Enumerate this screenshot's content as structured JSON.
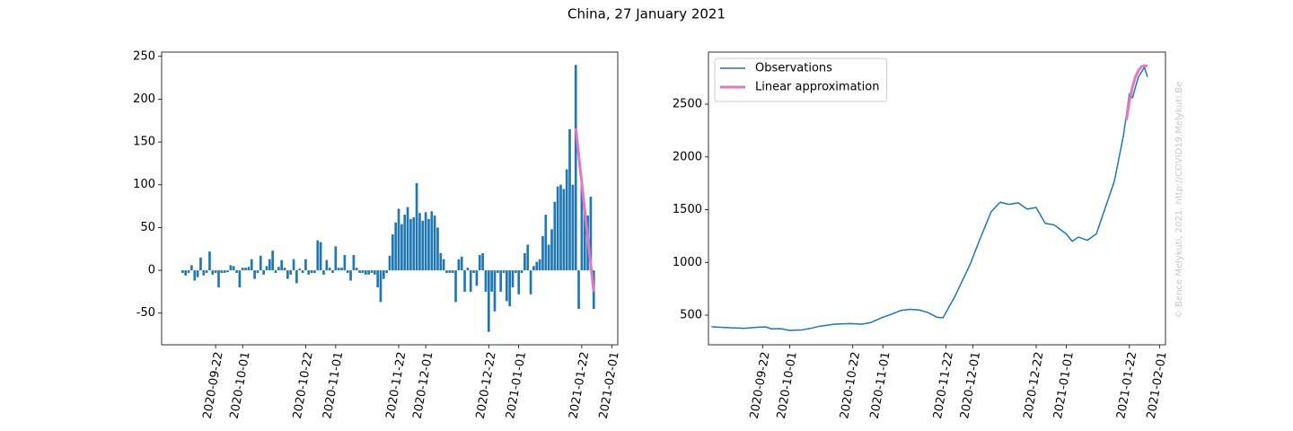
{
  "title": "China, 27 January 2021",
  "watermark": "© Bence Melykuti, 2021. http://COVID19.Melykuti.Be",
  "chart_data": [
    {
      "type": "bar",
      "xlim": [
        "2020-09-04",
        "2021-02-03"
      ],
      "xticks": [
        "2020-09-22",
        "2020-10-01",
        "2020-10-22",
        "2020-11-01",
        "2020-11-22",
        "2020-12-01",
        "2020-12-22",
        "2021-01-01",
        "2021-01-22",
        "2021-02-01"
      ],
      "ylim": [
        -87,
        255
      ],
      "yticks": [
        -50,
        0,
        50,
        100,
        150,
        200,
        250
      ],
      "series": [
        {
          "style": "bar",
          "color": "#1f77b4",
          "x": [
            "2020-09-11",
            "2020-09-12",
            "2020-09-13",
            "2020-09-14",
            "2020-09-15",
            "2020-09-16",
            "2020-09-17",
            "2020-09-18",
            "2020-09-19",
            "2020-09-20",
            "2020-09-21",
            "2020-09-22",
            "2020-09-23",
            "2020-09-24",
            "2020-09-25",
            "2020-09-26",
            "2020-09-27",
            "2020-09-28",
            "2020-09-29",
            "2020-09-30",
            "2020-10-01",
            "2020-10-02",
            "2020-10-03",
            "2020-10-04",
            "2020-10-05",
            "2020-10-06",
            "2020-10-07",
            "2020-10-08",
            "2020-10-09",
            "2020-10-10",
            "2020-10-11",
            "2020-10-12",
            "2020-10-13",
            "2020-10-14",
            "2020-10-15",
            "2020-10-16",
            "2020-10-17",
            "2020-10-18",
            "2020-10-19",
            "2020-10-20",
            "2020-10-21",
            "2020-10-22",
            "2020-10-23",
            "2020-10-24",
            "2020-10-25",
            "2020-10-26",
            "2020-10-27",
            "2020-10-28",
            "2020-10-29",
            "2020-10-30",
            "2020-10-31",
            "2020-11-01",
            "2020-11-02",
            "2020-11-03",
            "2020-11-04",
            "2020-11-05",
            "2020-11-06",
            "2020-11-07",
            "2020-11-08",
            "2020-11-09",
            "2020-11-10",
            "2020-11-11",
            "2020-11-12",
            "2020-11-13",
            "2020-11-14",
            "2020-11-15",
            "2020-11-16",
            "2020-11-17",
            "2020-11-18",
            "2020-11-19",
            "2020-11-20",
            "2020-11-21",
            "2020-11-22",
            "2020-11-23",
            "2020-11-24",
            "2020-11-25",
            "2020-11-26",
            "2020-11-27",
            "2020-11-28",
            "2020-11-29",
            "2020-11-30",
            "2020-12-01",
            "2020-12-02",
            "2020-12-03",
            "2020-12-04",
            "2020-12-05",
            "2020-12-06",
            "2020-12-07",
            "2020-12-08",
            "2020-12-09",
            "2020-12-10",
            "2020-12-11",
            "2020-12-12",
            "2020-12-13",
            "2020-12-14",
            "2020-12-15",
            "2020-12-16",
            "2020-12-17",
            "2020-12-18",
            "2020-12-19",
            "2020-12-20",
            "2020-12-21",
            "2020-12-22",
            "2020-12-23",
            "2020-12-24",
            "2020-12-25",
            "2020-12-26",
            "2020-12-27",
            "2020-12-28",
            "2020-12-29",
            "2020-12-30",
            "2020-12-31",
            "2021-01-01",
            "2021-01-02",
            "2021-01-03",
            "2021-01-04",
            "2021-01-05",
            "2021-01-06",
            "2021-01-07",
            "2021-01-08",
            "2021-01-09",
            "2021-01-10",
            "2021-01-11",
            "2021-01-12",
            "2021-01-13",
            "2021-01-14",
            "2021-01-15",
            "2021-01-16",
            "2021-01-17",
            "2021-01-18",
            "2021-01-19",
            "2021-01-20",
            "2021-01-21",
            "2021-01-22",
            "2021-01-23",
            "2021-01-24",
            "2021-01-25",
            "2021-01-26"
          ],
          "values": [
            -3,
            -6,
            -3,
            6,
            -12,
            -8,
            15,
            -6,
            -3,
            22,
            -5,
            -3,
            -20,
            -3,
            -3,
            -2,
            6,
            5,
            -3,
            -20,
            3,
            3,
            4,
            13,
            -10,
            -3,
            17,
            -5,
            5,
            13,
            23,
            -3,
            4,
            12,
            3,
            -10,
            -5,
            13,
            -15,
            2,
            -3,
            13,
            -5,
            -3,
            -3,
            35,
            33,
            -5,
            12,
            3,
            -3,
            28,
            3,
            3,
            18,
            -3,
            -12,
            18,
            3,
            -3,
            -3,
            -5,
            -5,
            -3,
            -5,
            -20,
            -37,
            -10,
            -3,
            17,
            42,
            56,
            72,
            54,
            65,
            74,
            60,
            62,
            102,
            67,
            58,
            68,
            60,
            69,
            64,
            50,
            20,
            13,
            -3,
            -3,
            -3,
            -37,
            13,
            16,
            -25,
            3,
            -25,
            -3,
            -18,
            18,
            20,
            -25,
            -72,
            -25,
            -48,
            -3,
            -25,
            -3,
            -36,
            -42,
            -20,
            -3,
            -28,
            -3,
            20,
            30,
            -28,
            5,
            10,
            13,
            40,
            65,
            30,
            48,
            80,
            98,
            100,
            95,
            118,
            165,
            100,
            240,
            -45,
            100,
            72,
            64,
            86,
            -45
          ]
        },
        {
          "style": "line",
          "color": "#e377c2",
          "linewidth": 3,
          "x": [
            "2021-01-20",
            "2021-01-26"
          ],
          "values": [
            166,
            -25
          ]
        }
      ]
    },
    {
      "type": "line",
      "xlim": [
        "2020-09-04",
        "2021-02-03"
      ],
      "xticks": [
        "2020-09-22",
        "2020-10-01",
        "2020-10-22",
        "2020-11-01",
        "2020-11-22",
        "2020-12-01",
        "2020-12-22",
        "2021-01-01",
        "2021-01-22",
        "2021-02-01"
      ],
      "ylim": [
        219,
        2994
      ],
      "yticks": [
        500,
        1000,
        1500,
        2000,
        2500
      ],
      "legend": "upper left",
      "series": [
        {
          "name": "Observations",
          "style": "line",
          "color": "#1f77b4",
          "linewidth": 1.5,
          "x": [
            "2020-09-05",
            "2020-09-08",
            "2020-09-12",
            "2020-09-16",
            "2020-09-20",
            "2020-09-23",
            "2020-09-25",
            "2020-09-28",
            "2020-10-01",
            "2020-10-05",
            "2020-10-08",
            "2020-10-11",
            "2020-10-16",
            "2020-10-21",
            "2020-10-25",
            "2020-10-28",
            "2020-11-01",
            "2020-11-04",
            "2020-11-07",
            "2020-11-10",
            "2020-11-13",
            "2020-11-16",
            "2020-11-19",
            "2020-11-21",
            "2020-11-25",
            "2020-11-30",
            "2020-12-03",
            "2020-12-07",
            "2020-12-10",
            "2020-12-13",
            "2020-12-16",
            "2020-12-19",
            "2020-12-22",
            "2020-12-25",
            "2020-12-28",
            "2021-01-01",
            "2021-01-03",
            "2021-01-05",
            "2021-01-08",
            "2021-01-11",
            "2021-01-14",
            "2021-01-17",
            "2021-01-20",
            "2021-01-22",
            "2021-01-23",
            "2021-01-25",
            "2021-01-27",
            "2021-01-28"
          ],
          "values": [
            390,
            385,
            380,
            375,
            385,
            388,
            370,
            372,
            355,
            360,
            375,
            395,
            415,
            420,
            415,
            430,
            480,
            510,
            545,
            555,
            550,
            525,
            480,
            475,
            680,
            980,
            1200,
            1480,
            1570,
            1550,
            1565,
            1505,
            1520,
            1370,
            1355,
            1270,
            1200,
            1240,
            1210,
            1270,
            1520,
            1770,
            2200,
            2600,
            2560,
            2760,
            2850,
            2760
          ]
        },
        {
          "name": "Linear approximation",
          "style": "line",
          "color": "#e377c2",
          "linewidth": 3,
          "x": [
            "2021-01-21",
            "2021-01-22",
            "2021-01-23",
            "2021-01-24",
            "2021-01-25",
            "2021-01-26",
            "2021-01-27",
            "2021-01-28"
          ],
          "values": [
            2350,
            2530,
            2660,
            2760,
            2820,
            2855,
            2865,
            2860
          ]
        }
      ]
    }
  ]
}
